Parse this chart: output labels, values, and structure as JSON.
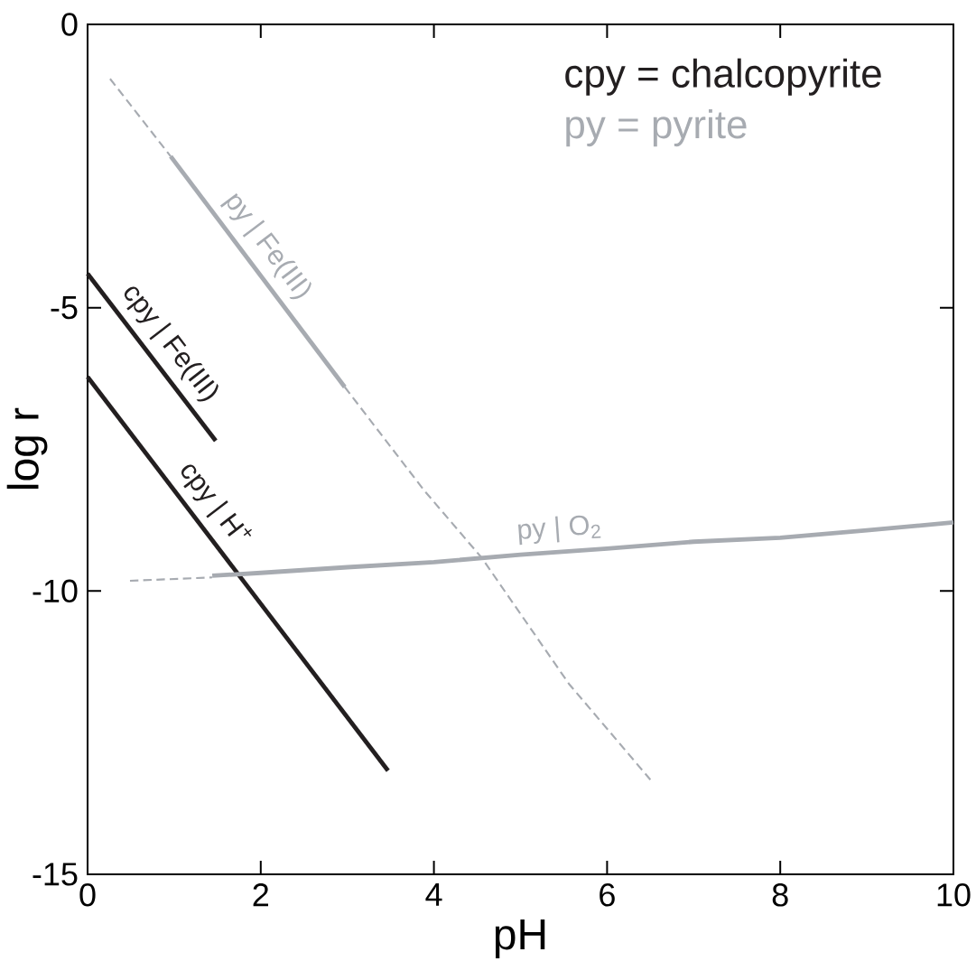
{
  "chart_data": {
    "type": "line",
    "xlabel": "pH",
    "ylabel": "log r",
    "xlim": [
      0,
      10
    ],
    "ylim": [
      -15,
      0
    ],
    "xticks": [
      0,
      2,
      4,
      6,
      8,
      10
    ],
    "yticks": [
      -15,
      -10,
      -5,
      0
    ],
    "grid": false,
    "marker": "none",
    "annotations": [
      "cpy = chalcopyrite",
      "py = pyrite"
    ],
    "series": [
      {
        "name": "cpy | Fe(III)",
        "color": "#231f20",
        "line_style": "solid",
        "x": [
          0,
          1.48
        ],
        "values": [
          -4.4,
          -7.35
        ]
      },
      {
        "name": "cpy | H$^{+}$",
        "color": "#231f20",
        "line_style": "solid",
        "x": [
          0,
          3.47
        ],
        "values": [
          -6.22,
          -13.17
        ]
      },
      {
        "name": "py | Fe(III)",
        "color": "#a7abb1",
        "line_style": "solid",
        "x": [
          0.96,
          2.97
        ],
        "values": [
          -2.33,
          -6.4
        ]
      },
      {
        "color": "#a7abb1",
        "line_style": "dashed",
        "x": [
          0.26,
          0.96
        ],
        "values": [
          -0.96,
          -2.33
        ]
      },
      {
        "color": "#a7abb1",
        "line_style": "dashed",
        "x": [
          2.97,
          3.89,
          4.55,
          5.56,
          6.5
        ],
        "values": [
          -6.4,
          -8.23,
          -9.41,
          -11.64,
          -13.33
        ]
      },
      {
        "name": "py | O$_{2}$",
        "color": "#a7abb1",
        "line_style": "solid",
        "x": [
          1.44,
          2,
          3,
          4,
          5,
          6,
          7,
          8,
          9,
          10
        ],
        "values": [
          -9.73,
          -9.68,
          -9.58,
          -9.49,
          -9.36,
          -9.25,
          -9.13,
          -9.06,
          -8.93,
          -8.79
        ]
      },
      {
        "color": "#a7abb1",
        "line_style": "dashed",
        "x": [
          0.49,
          1.44
        ],
        "values": [
          -9.82,
          -9.76
        ]
      }
    ]
  }
}
